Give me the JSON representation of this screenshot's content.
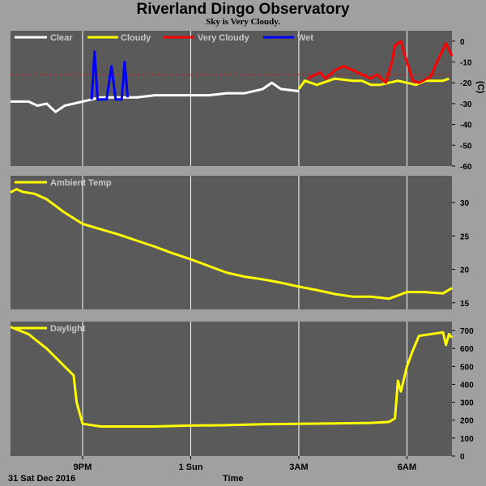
{
  "title": "Riverland Dingo Observatory",
  "subtitle": "Sky is Very Cloudy.",
  "footer": {
    "date_label": "31 Sat Dec 2016",
    "time_label": "Time"
  },
  "colors": {
    "background": "#a0a0a0",
    "panel": "#5a5a5a",
    "clear": "#ffffff",
    "cloudy": "#ffff00",
    "very_cloudy": "#ff0000",
    "wet": "#0000ff",
    "threshold_line": "#ff0000"
  },
  "x_axis": {
    "range": [
      "19:00",
      "07:15"
    ],
    "ticks": [
      {
        "label": "9PM",
        "at": "21:00"
      },
      {
        "label": "1 Sun",
        "at": "00:00"
      },
      {
        "label": "3AM",
        "at": "03:00"
      },
      {
        "label": "6AM",
        "at": "06:00"
      }
    ]
  },
  "chart_data": [
    {
      "type": "line",
      "name": "sky",
      "legend": [
        "Clear",
        "Cloudy",
        "Very Cloudy",
        "Wet"
      ],
      "ylabel": "(C)",
      "ylim": [
        -60,
        5
      ],
      "yticks": [
        0,
        -10,
        -20,
        -30,
        -40,
        -50,
        -60
      ],
      "threshold": -16,
      "series": [
        {
          "name": "Clear",
          "color": "#ffffff",
          "points": [
            [
              "19:00",
              -29
            ],
            [
              "19:30",
              -29
            ],
            [
              "19:45",
              -31
            ],
            [
              "20:00",
              -30
            ],
            [
              "20:15",
              -34
            ],
            [
              "20:30",
              -31
            ],
            [
              "20:45",
              -30
            ],
            [
              "21:00",
              -29
            ],
            [
              "21:30",
              -27
            ],
            [
              "22:00",
              -27
            ],
            [
              "22:30",
              -27
            ],
            [
              "23:00",
              -26
            ],
            [
              "23:30",
              -26
            ],
            [
              "00:00",
              -26
            ],
            [
              "00:30",
              -26
            ],
            [
              "01:00",
              -25
            ],
            [
              "01:30",
              -25
            ],
            [
              "02:00",
              -23
            ],
            [
              "02:15",
              -20
            ],
            [
              "02:30",
              -23
            ],
            [
              "03:00",
              -24
            ]
          ]
        },
        {
          "name": "Cloudy",
          "color": "#ffff00",
          "points": [
            [
              "03:00",
              -23
            ],
            [
              "03:10",
              -19
            ],
            [
              "03:20",
              -20
            ],
            [
              "03:30",
              -21
            ],
            [
              "04:00",
              -18
            ],
            [
              "04:30",
              -19
            ],
            [
              "04:45",
              -19
            ],
            [
              "05:00",
              -21
            ],
            [
              "05:15",
              -21
            ],
            [
              "05:45",
              -19
            ],
            [
              "06:00",
              -20
            ],
            [
              "06:15",
              -21
            ],
            [
              "06:30",
              -19
            ],
            [
              "07:00",
              -19
            ],
            [
              "07:10",
              -18
            ]
          ]
        },
        {
          "name": "Very Cloudy",
          "color": "#ff0000",
          "points": [
            [
              "03:15",
              -18
            ],
            [
              "03:35",
              -15
            ],
            [
              "03:45",
              -18
            ],
            [
              "04:00",
              -14
            ],
            [
              "04:15",
              -12
            ],
            [
              "04:30",
              -14
            ],
            [
              "04:45",
              -16
            ],
            [
              "05:00",
              -18
            ],
            [
              "05:10",
              -16
            ],
            [
              "05:25",
              -20
            ],
            [
              "05:35",
              -10
            ],
            [
              "05:40",
              -2
            ],
            [
              "05:50",
              0
            ],
            [
              "06:00",
              -10
            ],
            [
              "06:10",
              -19
            ],
            [
              "06:20",
              -20
            ],
            [
              "06:40",
              -17
            ],
            [
              "06:50",
              -10
            ],
            [
              "07:00",
              -4
            ],
            [
              "07:05",
              -1
            ],
            [
              "07:10",
              -4
            ],
            [
              "07:15",
              -7
            ]
          ]
        },
        {
          "name": "Wet",
          "color": "#0000ff",
          "points": [
            [
              "21:15",
              -28
            ],
            [
              "21:20",
              -5
            ],
            [
              "21:25",
              -28
            ],
            [
              "21:40",
              -28
            ],
            [
              "21:48",
              -12
            ],
            [
              "21:55",
              -28
            ],
            [
              "22:05",
              -28
            ],
            [
              "22:10",
              -10
            ],
            [
              "22:15",
              -27
            ]
          ]
        }
      ]
    },
    {
      "type": "line",
      "name": "ambient",
      "legend": [
        "Ambient Temp"
      ],
      "ylim": [
        14,
        34
      ],
      "yticks": [
        15,
        20,
        25,
        30
      ],
      "series": [
        {
          "name": "Ambient Temp",
          "color": "#ffff00",
          "points": [
            [
              "19:00",
              31.5
            ],
            [
              "19:10",
              32.0
            ],
            [
              "19:20",
              31.6
            ],
            [
              "19:40",
              31.3
            ],
            [
              "20:00",
              30.5
            ],
            [
              "20:30",
              28.5
            ],
            [
              "21:00",
              26.8
            ],
            [
              "21:30",
              26.0
            ],
            [
              "22:00",
              25.2
            ],
            [
              "22:30",
              24.3
            ],
            [
              "23:00",
              23.4
            ],
            [
              "23:30",
              22.4
            ],
            [
              "00:00",
              21.5
            ],
            [
              "00:30",
              20.5
            ],
            [
              "01:00",
              19.5
            ],
            [
              "01:30",
              18.9
            ],
            [
              "02:00",
              18.5
            ],
            [
              "02:30",
              18.0
            ],
            [
              "03:00",
              17.4
            ],
            [
              "03:30",
              16.9
            ],
            [
              "04:00",
              16.3
            ],
            [
              "04:30",
              15.9
            ],
            [
              "05:00",
              15.9
            ],
            [
              "05:30",
              15.6
            ],
            [
              "06:00",
              16.6
            ],
            [
              "06:30",
              16.6
            ],
            [
              "07:00",
              16.4
            ],
            [
              "07:15",
              17.2
            ]
          ]
        }
      ]
    },
    {
      "type": "line",
      "name": "daylight",
      "legend": [
        "Daylight"
      ],
      "ylim": [
        0,
        750
      ],
      "yticks": [
        0,
        100,
        200,
        300,
        400,
        500,
        600,
        700
      ],
      "series": [
        {
          "name": "Daylight",
          "color": "#ffff00",
          "points": [
            [
              "19:00",
              720
            ],
            [
              "19:30",
              680
            ],
            [
              "20:00",
              600
            ],
            [
              "20:30",
              500
            ],
            [
              "20:45",
              450
            ],
            [
              "20:50",
              300
            ],
            [
              "21:00",
              180
            ],
            [
              "21:30",
              165
            ],
            [
              "22:00",
              165
            ],
            [
              "23:00",
              165
            ],
            [
              "00:00",
              170
            ],
            [
              "01:00",
              172
            ],
            [
              "02:00",
              177
            ],
            [
              "03:00",
              180
            ],
            [
              "04:00",
              182
            ],
            [
              "05:00",
              185
            ],
            [
              "05:30",
              190
            ],
            [
              "05:40",
              210
            ],
            [
              "05:45",
              420
            ],
            [
              "05:50",
              360
            ],
            [
              "06:00",
              500
            ],
            [
              "06:10",
              590
            ],
            [
              "06:20",
              670
            ],
            [
              "06:40",
              680
            ],
            [
              "07:00",
              690
            ],
            [
              "07:05",
              620
            ],
            [
              "07:10",
              680
            ],
            [
              "07:15",
              660
            ]
          ]
        }
      ]
    }
  ]
}
